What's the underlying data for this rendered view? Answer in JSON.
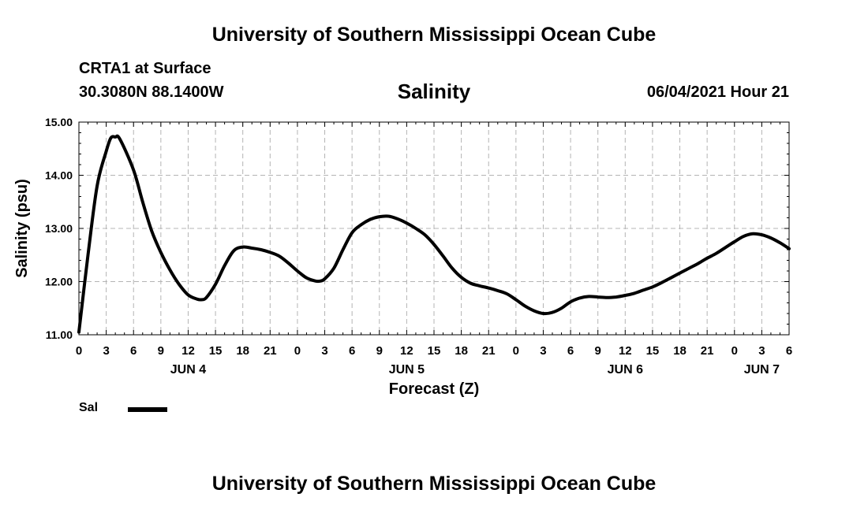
{
  "header": {
    "institution_top": "University of Southern Mississippi Ocean Cube",
    "institution_bottom": "University of Southern Mississippi Ocean Cube",
    "station": "CRTA1 at Surface",
    "coordinates": "30.3080N  88.1400W",
    "plot_title": "Salinity",
    "timestamp": "06/04/2021 Hour 21"
  },
  "legend": {
    "label": "Sal"
  },
  "colors": {
    "line": "#000000",
    "grid": "#b4b4b4",
    "axis": "#000000"
  },
  "chart_data": {
    "type": "line",
    "title": "Salinity",
    "xlabel": "Forecast (Z)",
    "ylabel": "Salinity (psu)",
    "ylim": [
      11.0,
      15.0
    ],
    "y_ticks": [
      "11.00",
      "12.00",
      "13.00",
      "14.00",
      "15.00"
    ],
    "x_range_hours": [
      0,
      78
    ],
    "x_tick_labels": [
      "0",
      "3",
      "6",
      "9",
      "12",
      "15",
      "18",
      "21",
      "0",
      "3",
      "6",
      "9",
      "12",
      "15",
      "18",
      "21",
      "0",
      "3",
      "6",
      "9",
      "12",
      "15",
      "18",
      "21",
      "0",
      "3",
      "6"
    ],
    "day_labels": [
      {
        "label": "JUN 4",
        "hour": 12
      },
      {
        "label": "JUN 5",
        "hour": 36
      },
      {
        "label": "JUN 6",
        "hour": 60
      },
      {
        "label": "JUN 7",
        "hour": 75
      }
    ],
    "grid": true,
    "legend_position": "bottom-left",
    "series": [
      {
        "name": "Sal",
        "x": [
          0,
          1,
          2,
          3,
          3.5,
          4,
          4.5,
          6,
          7,
          8,
          9,
          10,
          11,
          12,
          13,
          13.5,
          14,
          15,
          16,
          17,
          18,
          19,
          20,
          21,
          22,
          23,
          24,
          25,
          26,
          26.5,
          27,
          28,
          29,
          30,
          31,
          32,
          33,
          34,
          35,
          36,
          37,
          38,
          39,
          40,
          41,
          42,
          43,
          44,
          45,
          46,
          47,
          48,
          49,
          50,
          51,
          52,
          53,
          54,
          55,
          56,
          57,
          58,
          59,
          60,
          61,
          62,
          63,
          64,
          65,
          66,
          67,
          68,
          69,
          70,
          71,
          72,
          73,
          74,
          75,
          76,
          77,
          78
        ],
        "values": [
          11.05,
          12.5,
          13.8,
          14.45,
          14.7,
          14.72,
          14.68,
          14.1,
          13.5,
          12.95,
          12.55,
          12.22,
          11.95,
          11.75,
          11.67,
          11.66,
          11.7,
          11.95,
          12.3,
          12.58,
          12.65,
          12.63,
          12.6,
          12.55,
          12.48,
          12.35,
          12.2,
          12.07,
          12.01,
          12.01,
          12.05,
          12.25,
          12.6,
          12.92,
          13.07,
          13.17,
          13.22,
          13.23,
          13.18,
          13.1,
          13.0,
          12.88,
          12.7,
          12.48,
          12.25,
          12.08,
          11.97,
          11.92,
          11.88,
          11.83,
          11.77,
          11.66,
          11.54,
          11.45,
          11.4,
          11.42,
          11.5,
          11.62,
          11.69,
          11.72,
          11.71,
          11.7,
          11.71,
          11.74,
          11.78,
          11.84,
          11.9,
          11.98,
          12.07,
          12.16,
          12.25,
          12.34,
          12.44,
          12.53,
          12.64,
          12.75,
          12.85,
          12.9,
          12.88,
          12.82,
          12.73,
          12.62
        ]
      }
    ]
  }
}
